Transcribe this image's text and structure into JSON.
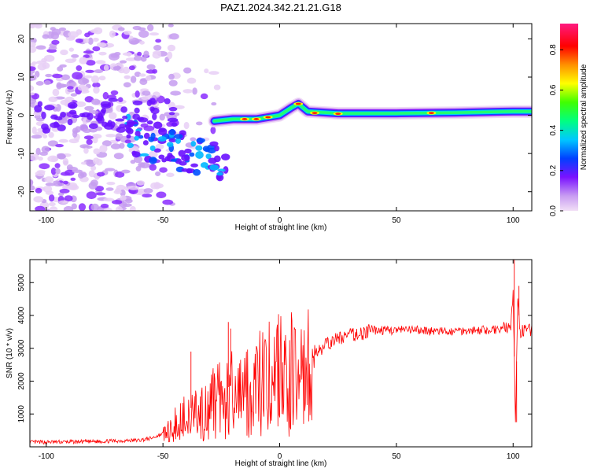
{
  "title": "PAZ1.2024.342.21.21.G18",
  "chart_data": [
    {
      "type": "heatmap",
      "xlabel": "Height of straight line (km)",
      "ylabel": "Frequency (Hz)",
      "xlim": [
        -107,
        108
      ],
      "ylim": [
        -25,
        24
      ],
      "xticks": [
        -100,
        -50,
        0,
        50,
        100
      ],
      "yticks": [
        20,
        10,
        0,
        -10,
        -20
      ],
      "colorbar": {
        "label": "Normalized spectral amplitude",
        "range": [
          0.0,
          0.93
        ],
        "ticks": [
          0.0,
          0.2,
          0.4,
          0.6,
          0.8
        ],
        "tick_labels": [
          "0.0",
          "0.2",
          "0.4",
          "0.6",
          "0.8"
        ],
        "colors": [
          "#f2e0f6",
          "#7a12ff",
          "#0040ff",
          "#00e0ff",
          "#00ff40",
          "#ffff00",
          "#ff8000",
          "#ff0000",
          "#ff1a80"
        ]
      },
      "ridge": {
        "description_points": [
          {
            "x": -28,
            "y": -1.5
          },
          {
            "x": -20,
            "y": -1
          },
          {
            "x": -10,
            "y": -1
          },
          {
            "x": 0,
            "y": 0
          },
          {
            "x": 5,
            "y": 2
          },
          {
            "x": 8,
            "y": 3
          },
          {
            "x": 12,
            "y": 1
          },
          {
            "x": 25,
            "y": 0.5
          },
          {
            "x": 50,
            "y": 0.5
          },
          {
            "x": 75,
            "y": 0.7
          },
          {
            "x": 100,
            "y": 1
          },
          {
            "x": 108,
            "y": 1
          }
        ]
      },
      "scatter_region": {
        "x_range": [
          -107,
          -20
        ],
        "y_range": [
          -25,
          24
        ]
      }
    },
    {
      "type": "line",
      "xlabel": "Height of straight line (km)",
      "ylabel": "SNR (10 * v/v)",
      "xlim": [
        -107,
        108
      ],
      "ylim": [
        0,
        5700
      ],
      "xticks": [
        -100,
        -50,
        0,
        50,
        100
      ],
      "yticks": [
        1000,
        2000,
        3000,
        4000,
        5000
      ],
      "color": "#ff0000",
      "x": [
        -107,
        -90,
        -80,
        -70,
        -60,
        -55,
        -50,
        -47,
        -45,
        -42,
        -40,
        -35,
        -30,
        -25,
        -20,
        -15,
        -10,
        -5,
        0,
        5,
        8,
        10,
        15,
        20,
        25,
        30,
        35,
        40,
        50,
        60,
        70,
        80,
        90,
        95,
        99,
        100,
        101,
        102,
        103,
        105,
        108
      ],
      "values": [
        140,
        150,
        160,
        180,
        200,
        260,
        400,
        550,
        750,
        1000,
        1100,
        1300,
        1550,
        1700,
        1900,
        2050,
        2250,
        2500,
        2650,
        2750,
        2400,
        2700,
        2900,
        3100,
        3300,
        3400,
        3450,
        3550,
        3550,
        3550,
        3500,
        3550,
        3550,
        3600,
        3650,
        4800,
        700,
        4500,
        3500,
        3550,
        3550
      ],
      "peaks": [
        {
          "x": -22,
          "y": 3800
        },
        {
          "x": -21,
          "y": 3600
        },
        {
          "x": -38,
          "y": 2900
        },
        {
          "x": 100.5,
          "y": 5700
        },
        {
          "x": 101.5,
          "y": 750
        },
        {
          "x": 102.5,
          "y": 4900
        }
      ]
    }
  ]
}
